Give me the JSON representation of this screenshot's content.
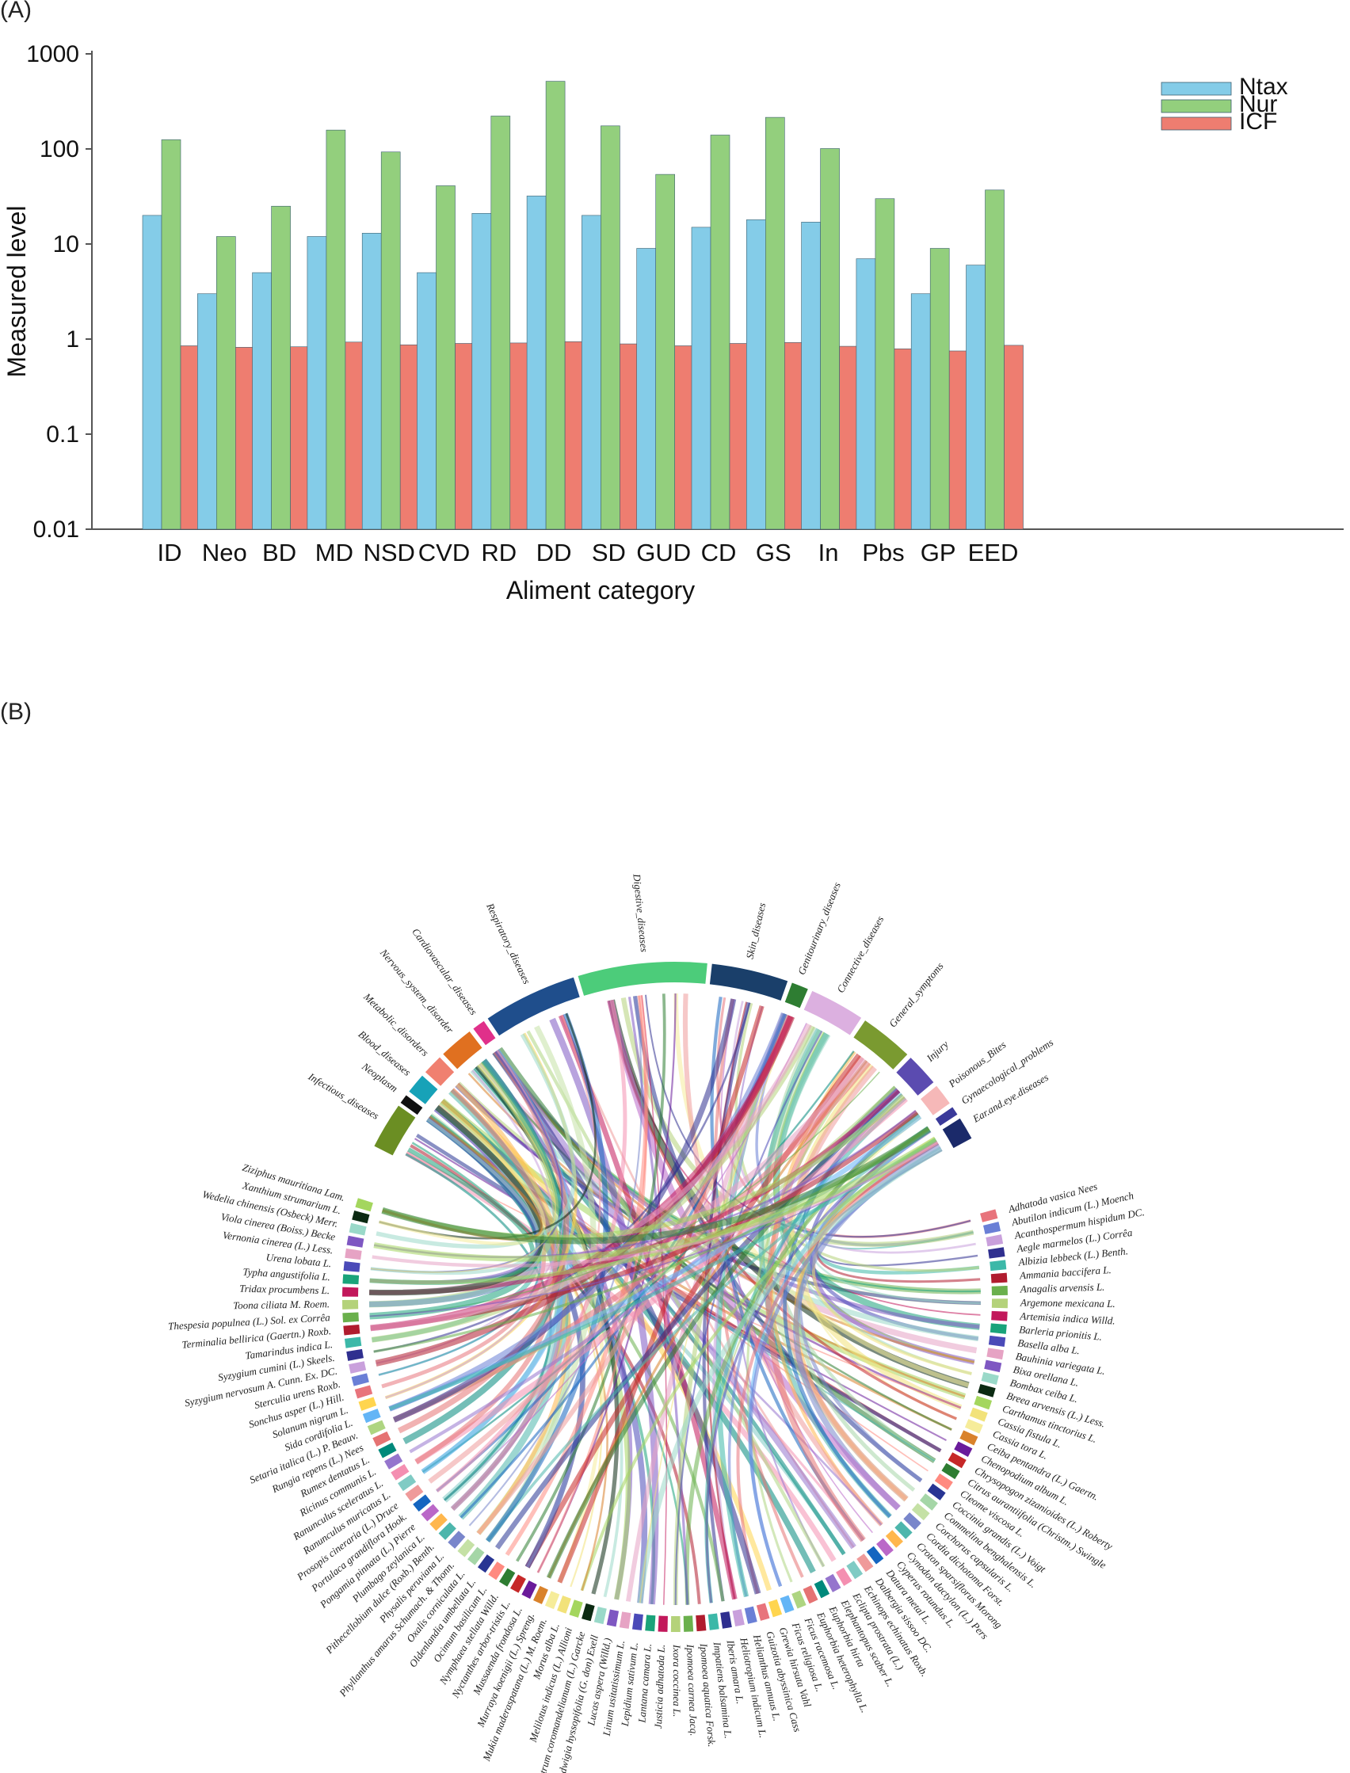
{
  "panel_a_label": "(A)",
  "panel_b_label": "(B)",
  "colors": {
    "Ntax": "#84cce8",
    "Nur": "#93cf7d",
    "ICF": "#ee7d70",
    "axis": "#555555"
  },
  "chart_data": [
    {
      "type": "bar",
      "title": "",
      "xlabel": "Aliment category",
      "ylabel": "Measured level",
      "yscale": "log",
      "ylim": [
        0.01,
        1000
      ],
      "yticks": [
        "0.01",
        "0.1",
        "1",
        "10",
        "100",
        "1000"
      ],
      "legend_position": "top-right",
      "categories": [
        "ID",
        "Neo",
        "BD",
        "MD",
        "NSD",
        "CVD",
        "RD",
        "DD",
        "SD",
        "GUD",
        "CD",
        "GS",
        "In",
        "Pbs",
        "GP",
        "EED"
      ],
      "series": [
        {
          "name": "Ntax",
          "values": [
            20,
            3,
            5,
            12,
            13,
            5,
            21,
            32,
            20,
            9,
            15,
            18,
            17,
            7,
            3,
            6
          ]
        },
        {
          "name": "Nur",
          "values": [
            125,
            12,
            25,
            158,
            93,
            41,
            222,
            515,
            175,
            54,
            140,
            215,
            101,
            30,
            9,
            37
          ]
        },
        {
          "name": "ICF",
          "values": [
            0.85,
            0.82,
            0.83,
            0.93,
            0.87,
            0.9,
            0.91,
            0.94,
            0.89,
            0.85,
            0.9,
            0.92,
            0.84,
            0.79,
            0.75,
            0.86
          ]
        }
      ]
    },
    {
      "type": "chord",
      "categories": [
        {
          "label": "Infectious_diseases",
          "color": "#6b8e23"
        },
        {
          "label": "Neoplasm",
          "color": "#111111"
        },
        {
          "label": "Blood_diseases",
          "color": "#17a2b8"
        },
        {
          "label": "Metabolic_disorders",
          "color": "#f08070"
        },
        {
          "label": "Nervous_system_disorder",
          "color": "#e07020"
        },
        {
          "label": "Cardiovascular_diseases",
          "color": "#e0308a"
        },
        {
          "label": "Respiratory_diseases",
          "color": "#1f4e8c"
        },
        {
          "label": "Digestive_diseases",
          "color": "#4ccc7a"
        },
        {
          "label": "Skin_diseases",
          "color": "#1a3f6a"
        },
        {
          "label": "Genitourinary_diseases",
          "color": "#2e7d32"
        },
        {
          "label": "Connective_diseases",
          "color": "#dcb0e0"
        },
        {
          "label": "General_symptoms",
          "color": "#7a9a30"
        },
        {
          "label": "Injury",
          "color": "#5b4bb0"
        },
        {
          "label": "Poisonous_Bites",
          "color": "#f6b8b8"
        },
        {
          "label": "Gynaecological_problems",
          "color": "#3a3a9a"
        },
        {
          "label": "Ear.and.eye.diseases",
          "color": "#1b2a6a"
        }
      ],
      "species": [
        "Adhatoda vasica Nees",
        "Abutilon indicum (L.) Moench",
        "Acanthospermum hispidum DC.",
        "Aegle marmelos (L.) Corrêa",
        "Albizia lebbeck (L.) Benth.",
        "Ammania baccifera L.",
        "Anagalis arvensis L.",
        "Argemone mexicana L.",
        "Artemisia indica Willd.",
        "Barleria prionitis L.",
        "Basella alba L.",
        "Bauhinia variegata L.",
        "Bixa orellana L.",
        "Bombax ceiba L.",
        "Breea arvensis (L.) Less.",
        "Carthamus tinctorius L.",
        "Cassia fistula L.",
        "Cassia tora L.",
        "Ceiba pentandra (L.) Gaertn.",
        "Chenopodium album L.",
        "Chrysopogon zizanioides (L.) Roberty",
        "Citrus aurantiifolia (Christm.) Swingle",
        "Cleome viscosa L.",
        "Coccinia grandis (L.) Voigt",
        "Commelina benghalensis L.",
        "Corchorus capsularis L.",
        "Cordia dichotoma Forst.",
        "Croton sparsiflorus Morong",
        "Cynodon dactylon (L.) Pers",
        "Cyperus rotundus L.",
        "Datura metal L.",
        "Dalbergia sissoo DC.",
        "Echinops echinatus Roxb.",
        "Eclipta prostrata (L.)",
        "Elephantopus scaber L.",
        "Euphorbia hirta",
        "Euphorbia heterophylla L.",
        "Ficus racemosa L.",
        "Ficus religiosa L.",
        "Grewia hirsuta Vahl",
        "Guizotia abyssinica Cass",
        "Helianthus annuus L.",
        "Heliotropium indicum L.",
        "Iberis amara L.",
        "Impatiens balsamina L.",
        "Ipomoea aquatica Forsk.",
        "Ipomoea carnea Jacq.",
        "Ixora coccinea L.",
        "Justicia adhatoda L.",
        "Lantana camara L.",
        "Lepidium sativum L.",
        "Linum usitatissimum L.",
        "Lucas aspera (Willd.)",
        "Ludwigia hyssopifolia (G. don) Exell",
        "Malvastrum coromandelianum (L.) Garcke",
        "Melilotus indicus (L.) Allioni",
        "Morus alba L.",
        "Mukia maderaspatana (L.) M. Roem.",
        "Murraya koenigii (L.) Spreng.",
        "Mussaenda frondosa L.",
        "Nyctanthes arbor-tristis L.",
        "Nymphaea stellata Willd.",
        "Ocimum basilicum L.",
        "Oldenlandia umbellata L.",
        "Oxalis corniculata L.",
        "Phyllanthus amarus Schumach. & Thonn.",
        "Physalis peruviana L.",
        "Pithecellobium dulce (Roxb.) Benth.",
        "Plumbago zeylanica L.",
        "Pongamia pinnata (L.) Pierre",
        "Portulaca grandiflora Hook.",
        "Prosopis cineraria (L.) Druce",
        "Ranunculus muricatus L.",
        "Ranunculus sceleratus L.",
        "Ricinus communis L.",
        "Rumex dentatus L.",
        "Rungia repens (L.) Nees",
        "Setaria italica (L.) P. Beauv.",
        "Sida cordifolia L.",
        "Solanum nigrum L.",
        "Sonchus asper (L.) Hill.",
        "Sterculia urens Roxb.",
        "Syzygium nervosum A. Cunn. Ex. DC.",
        "Syzygium cumini (L.) Skeels.",
        "Tamarindus indica L.",
        "Terminalia bellirica (Gaertn.) Roxb.",
        "Thespesia populnea (L.) Sol. ex Corrêa",
        "Toona ciliata M. Roem.",
        "Tridax procumbens L.",
        "Typha angustifolia L.",
        "Urena lobata L.",
        "Vernonia cinerea (L.) Less.",
        "Viola cinerea (Boiss.) Becke",
        "Wedelia chinensis (Osbeck) Merr.",
        "Xanthium strumarium L.",
        "Ziziphus mauritiana Lam."
      ]
    }
  ]
}
